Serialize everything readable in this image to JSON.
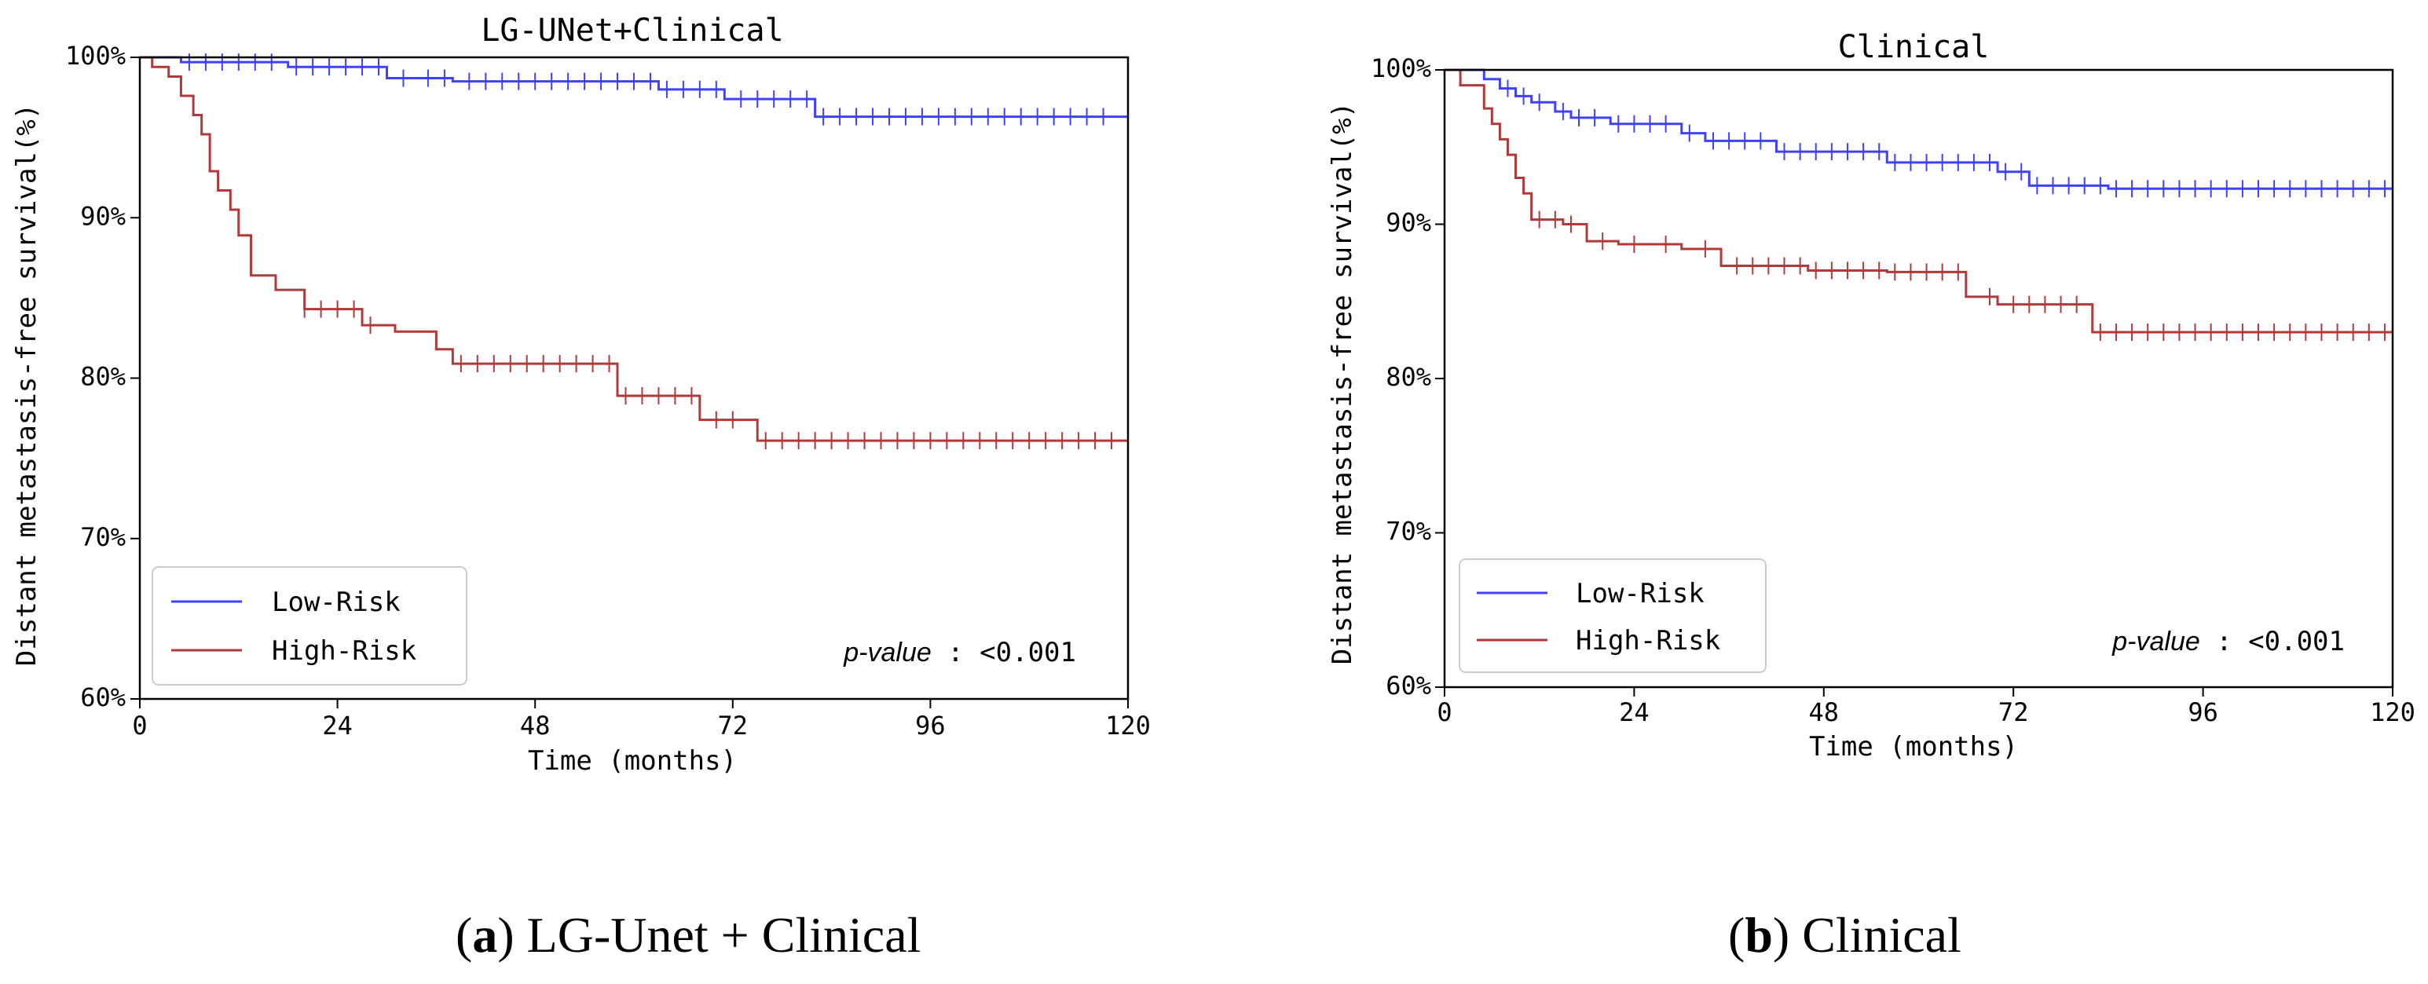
{
  "colors": {
    "low_risk": "#4040ff",
    "high_risk": "#b03a3a",
    "axis": "#000000",
    "background": "#ffffff"
  },
  "chart_data": [
    {
      "type": "line",
      "panel_label": "a",
      "panel_caption": " LG-Unet + Clinical",
      "title": "LG-UNet+Clinical",
      "xlabel": "Time (months)",
      "ylabel": "Distant metastasis-free survival(%)",
      "xlim": [
        0,
        120
      ],
      "ylim": [
        60,
        100
      ],
      "xticks": [
        0,
        24,
        48,
        72,
        96,
        120
      ],
      "yticks": [
        60,
        70,
        80,
        90,
        100
      ],
      "ytick_labels": [
        "60%",
        "70%",
        "80%",
        "90%",
        "100%"
      ],
      "legend": "lower-left",
      "pvalue_label": "p-value",
      "pvalue_text": " : <0.001",
      "series": [
        {
          "name": "Low-Risk",
          "color_key": "low_risk",
          "steps": [
            [
              0,
              100
            ],
            [
              5,
              99.7
            ],
            [
              18,
              99.4
            ],
            [
              30,
              98.7
            ],
            [
              38,
              98.5
            ],
            [
              63,
              98.0
            ],
            [
              71,
              97.4
            ],
            [
              82,
              96.3
            ],
            [
              120,
              96.3
            ]
          ],
          "censor": [
            6,
            8,
            10,
            12,
            14,
            16,
            19,
            21,
            23,
            25,
            27,
            29,
            32,
            35,
            37,
            40,
            42,
            44,
            46,
            48,
            50,
            52,
            54,
            56,
            58,
            60,
            62,
            64,
            66,
            68,
            70,
            73,
            75,
            77,
            79,
            81,
            83,
            85,
            87,
            89,
            91,
            93,
            95,
            97,
            99,
            101,
            103,
            105,
            107,
            109,
            111,
            113,
            115,
            117
          ]
        },
        {
          "name": "High-Risk",
          "color_key": "high_risk",
          "steps": [
            [
              0,
              100
            ],
            [
              1.5,
              99.4
            ],
            [
              3.5,
              98.8
            ],
            [
              5,
              97.6
            ],
            [
              6.5,
              96.4
            ],
            [
              7.5,
              95.2
            ],
            [
              8.5,
              92.9
            ],
            [
              9.5,
              91.7
            ],
            [
              11,
              90.5
            ],
            [
              12,
              88.9
            ],
            [
              13.5,
              86.4
            ],
            [
              16.5,
              85.5
            ],
            [
              20,
              84.3
            ],
            [
              27,
              83.3
            ],
            [
              31,
              82.9
            ],
            [
              36,
              81.8
            ],
            [
              38,
              80.9
            ],
            [
              58,
              78.9
            ],
            [
              68,
              77.4
            ],
            [
              75,
              76.1
            ],
            [
              120,
              76.1
            ]
          ],
          "censor": [
            20,
            22,
            24,
            26,
            28,
            39,
            41,
            43,
            45,
            47,
            49,
            51,
            53,
            55,
            57,
            59,
            61,
            63,
            65,
            67,
            70,
            72,
            76,
            78,
            80,
            82,
            84,
            86,
            88,
            90,
            92,
            94,
            96,
            98,
            100,
            102,
            104,
            106,
            108,
            110,
            112,
            114,
            116,
            118
          ]
        }
      ]
    },
    {
      "type": "line",
      "panel_label": "b",
      "panel_caption": " Clinical",
      "title": "Clinical",
      "xlabel": "Time (months)",
      "ylabel": "Distant metastasis-free survival(%)",
      "xlim": [
        0,
        120
      ],
      "ylim": [
        60,
        100
      ],
      "xticks": [
        0,
        24,
        48,
        72,
        96,
        120
      ],
      "yticks": [
        60,
        70,
        80,
        90,
        100
      ],
      "ytick_labels": [
        "60%",
        "70%",
        "80%",
        "90%",
        "100%"
      ],
      "legend": "lower-left",
      "pvalue_label": "p-value",
      "pvalue_text": " : <0.001",
      "series": [
        {
          "name": "Low-Risk",
          "color_key": "low_risk",
          "steps": [
            [
              0,
              100
            ],
            [
              5,
              99.4
            ],
            [
              7,
              98.8
            ],
            [
              9,
              98.3
            ],
            [
              11,
              97.9
            ],
            [
              14,
              97.3
            ],
            [
              16,
              96.9
            ],
            [
              21,
              96.5
            ],
            [
              30,
              95.9
            ],
            [
              33,
              95.4
            ],
            [
              42,
              94.7
            ],
            [
              56,
              94.0
            ],
            [
              70,
              93.4
            ],
            [
              74,
              92.5
            ],
            [
              84,
              92.3
            ],
            [
              120,
              92.3
            ]
          ],
          "censor": [
            8,
            10,
            12,
            15,
            17,
            19,
            22,
            24,
            26,
            28,
            31,
            34,
            36,
            38,
            40,
            43,
            45,
            47,
            49,
            51,
            53,
            55,
            57,
            59,
            61,
            63,
            65,
            67,
            69,
            71,
            73,
            75,
            77,
            79,
            81,
            83,
            85,
            87,
            89,
            91,
            93,
            95,
            97,
            99,
            101,
            103,
            105,
            107,
            109,
            111,
            113,
            115,
            117,
            119
          ]
        },
        {
          "name": "High-Risk",
          "color_key": "high_risk",
          "steps": [
            [
              0,
              100
            ],
            [
              2,
              99.0
            ],
            [
              5,
              97.5
            ],
            [
              6,
              96.5
            ],
            [
              7,
              95.5
            ],
            [
              8,
              94.5
            ],
            [
              9,
              93.0
            ],
            [
              10,
              92.0
            ],
            [
              11,
              90.3
            ],
            [
              15,
              90.0
            ],
            [
              18,
              88.9
            ],
            [
              22,
              88.7
            ],
            [
              30,
              88.4
            ],
            [
              35,
              87.3
            ],
            [
              46,
              87.0
            ],
            [
              56,
              86.9
            ],
            [
              66,
              85.3
            ],
            [
              70,
              84.8
            ],
            [
              82,
              83.0
            ],
            [
              120,
              83.0
            ]
          ],
          "censor": [
            12,
            14,
            16,
            20,
            24,
            28,
            33,
            37,
            39,
            41,
            43,
            45,
            47,
            49,
            51,
            53,
            55,
            57,
            59,
            61,
            63,
            65,
            69,
            72,
            74,
            76,
            78,
            80,
            83,
            85,
            87,
            89,
            91,
            93,
            95,
            97,
            99,
            101,
            103,
            105,
            107,
            109,
            111,
            113,
            115,
            117,
            119
          ]
        }
      ]
    }
  ]
}
